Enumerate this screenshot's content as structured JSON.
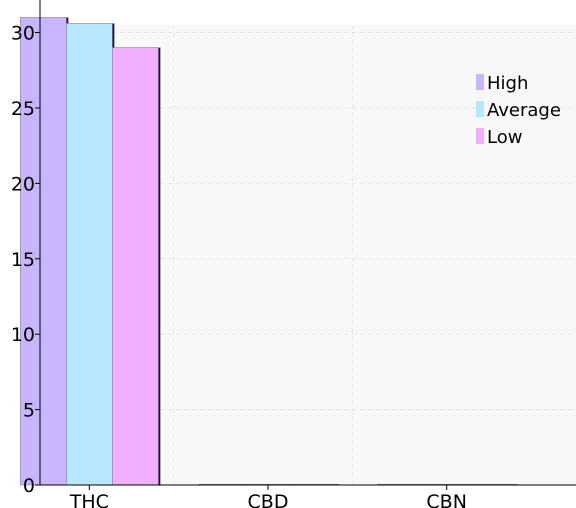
{
  "chart_data": {
    "type": "bar",
    "categories": [
      "THC",
      "CBD",
      "CBN"
    ],
    "series": [
      {
        "name": "High",
        "values": [
          31.0,
          0.05,
          0.05
        ],
        "color": "#c8b4ff"
      },
      {
        "name": "Average",
        "values": [
          30.6,
          0.05,
          0.05
        ],
        "color": "#b6e7ff"
      },
      {
        "name": "Low",
        "values": [
          29.0,
          0.05,
          0.05
        ],
        "color": "#f0b0ff"
      }
    ],
    "ylim": [
      0,
      30.5
    ],
    "yticks": [
      "0",
      "5",
      "10",
      "15",
      "20",
      "25",
      "30"
    ],
    "ytick_values": [
      0,
      5,
      10,
      15,
      20,
      25,
      30
    ],
    "title": "",
    "xlabel": "",
    "ylabel": "",
    "grid": true,
    "legend_position": "top-right",
    "colors": {
      "plot_background": "#f8f8f8",
      "grid": "#e6e6e6",
      "axis": "#000000",
      "bar_shadow": "#1a1a2e"
    }
  }
}
